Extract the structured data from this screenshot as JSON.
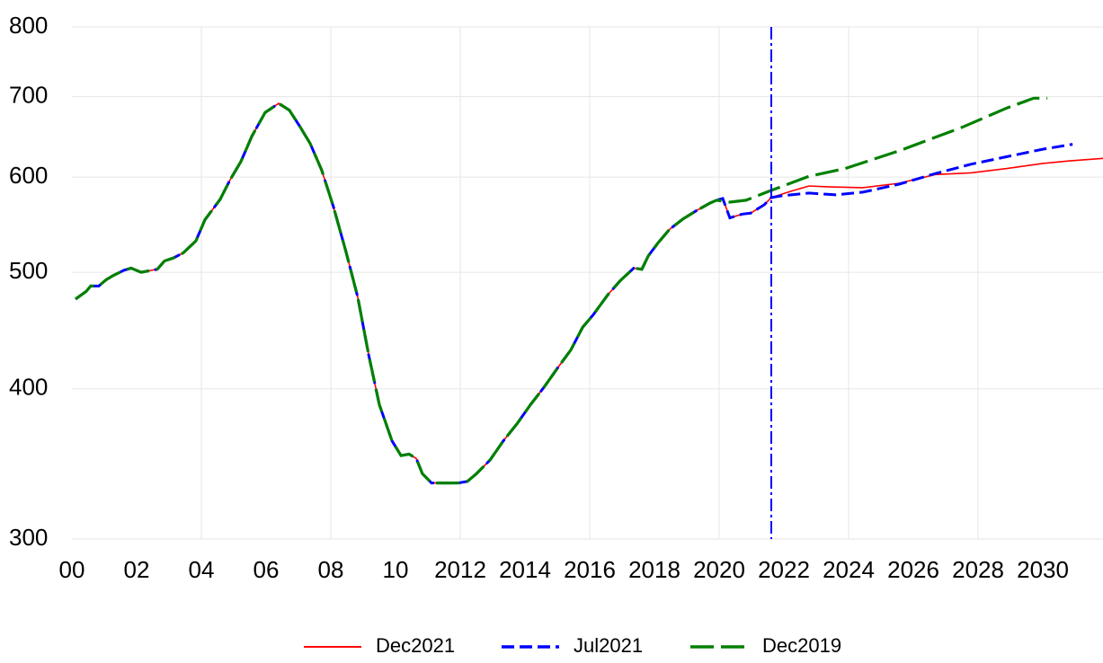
{
  "chart_data": {
    "type": "line",
    "log_y": true,
    "xlim": [
      2000,
      2031.86
    ],
    "ylim": [
      300,
      800
    ],
    "xticks": [
      {
        "value": 2000,
        "label": "00"
      },
      {
        "value": 2002,
        "label": "02"
      },
      {
        "value": 2004,
        "label": "04"
      },
      {
        "value": 2006,
        "label": "06"
      },
      {
        "value": 2008,
        "label": "08"
      },
      {
        "value": 2010,
        "label": "10"
      },
      2012,
      2014,
      2016,
      2018,
      2020,
      2022,
      2024,
      2026,
      2028,
      2030
    ],
    "xgrid": [
      2004,
      2008,
      2012,
      2016,
      2020,
      2024,
      2028
    ],
    "yticks": [
      300,
      400,
      500,
      600,
      700,
      800
    ],
    "grid": true,
    "vline": {
      "x": 2021.61,
      "color": "#0000ff"
    },
    "legend": "bottom",
    "series": [
      {
        "name": "Dec2021",
        "color": "#ff0000",
        "style": "solid",
        "x": [
          2000.11,
          2000.44,
          2000.58,
          2000.83,
          2001.06,
          2001.28,
          2001.61,
          2001.83,
          2002.14,
          2002.64,
          2002.86,
          2003.14,
          2003.44,
          2003.83,
          2004.11,
          2004.58,
          2004.89,
          2005.22,
          2005.56,
          2005.97,
          2006.39,
          2006.72,
          2007.03,
          2007.36,
          2007.72,
          2008.08,
          2008.47,
          2008.83,
          2009.17,
          2009.5,
          2009.89,
          2010.17,
          2010.42,
          2010.64,
          2010.83,
          2011.11,
          2011.53,
          2011.94,
          2012.22,
          2012.5,
          2012.92,
          2013.33,
          2013.75,
          2014.17,
          2014.58,
          2015,
          2015.42,
          2015.78,
          2016.11,
          2016.56,
          2016.94,
          2017.36,
          2017.61,
          2017.81,
          2018.11,
          2018.47,
          2018.89,
          2019.31,
          2019.72,
          2019.92,
          2020.11,
          2020.33,
          2020.72,
          2020.97,
          2021.39,
          2021.61,
          2022.22,
          2022.78,
          2023.33,
          2024.44,
          2025.56,
          2026.67,
          2027.78,
          2028.89,
          2030,
          2030.83,
          2031.86
        ],
        "values": [
          475,
          482,
          487,
          487,
          493,
          497,
          502,
          504,
          500,
          503,
          511,
          514,
          519,
          531,
          553,
          575,
          597,
          618,
          649,
          679,
          691,
          682,
          662,
          640,
          608,
          567,
          520,
          477,
          427,
          388,
          362,
          352,
          353,
          350,
          340,
          334,
          334,
          334,
          335,
          340,
          349,
          362,
          374,
          388,
          401,
          416,
          431,
          450,
          461,
          479,
          492,
          504,
          503,
          516,
          529,
          543,
          554,
          563,
          571,
          574,
          576,
          555,
          559,
          560,
          569,
          577,
          584,
          590,
          589,
          588,
          593,
          603,
          605,
          610,
          616,
          619,
          622
        ]
      },
      {
        "name": "Jul2021",
        "color": "#0000ff",
        "style": "dashed",
        "x": [
          2000.11,
          2000.44,
          2000.58,
          2000.83,
          2001.06,
          2001.28,
          2001.61,
          2001.83,
          2002.14,
          2002.64,
          2002.86,
          2003.14,
          2003.44,
          2003.83,
          2004.11,
          2004.58,
          2004.89,
          2005.22,
          2005.56,
          2005.97,
          2006.39,
          2006.72,
          2007.03,
          2007.36,
          2007.72,
          2008.08,
          2008.47,
          2008.83,
          2009.17,
          2009.5,
          2009.89,
          2010.17,
          2010.42,
          2010.64,
          2010.83,
          2011.11,
          2011.53,
          2011.94,
          2012.22,
          2012.5,
          2012.92,
          2013.33,
          2013.75,
          2014.17,
          2014.58,
          2015,
          2015.42,
          2015.78,
          2016.11,
          2016.56,
          2016.94,
          2017.36,
          2017.61,
          2017.81,
          2018.11,
          2018.47,
          2018.89,
          2019.31,
          2019.72,
          2019.92,
          2020.11,
          2020.33,
          2020.72,
          2020.97,
          2021.39,
          2021.61,
          2021.94,
          2022.78,
          2023.61,
          2024.44,
          2025.56,
          2026.67,
          2027.78,
          2028.89,
          2030,
          2030.92
        ],
        "values": [
          475,
          482,
          487,
          487,
          493,
          497,
          502,
          504,
          500,
          503,
          511,
          514,
          519,
          531,
          553,
          575,
          597,
          618,
          649,
          679,
          691,
          682,
          662,
          640,
          608,
          567,
          520,
          477,
          427,
          388,
          362,
          352,
          353,
          350,
          340,
          334,
          334,
          334,
          335,
          340,
          349,
          362,
          374,
          388,
          401,
          416,
          431,
          450,
          461,
          479,
          492,
          504,
          503,
          516,
          529,
          543,
          554,
          563,
          571,
          574,
          576,
          555,
          559,
          560,
          569,
          577,
          579,
          582,
          580,
          583,
          592,
          604,
          615,
          624,
          633,
          639
        ]
      },
      {
        "name": "Dec2019",
        "color": "#008000",
        "style": "longdash",
        "x": [
          2000.11,
          2000.44,
          2000.58,
          2000.83,
          2001.06,
          2001.28,
          2001.61,
          2001.83,
          2002.14,
          2002.64,
          2002.86,
          2003.14,
          2003.44,
          2003.83,
          2004.11,
          2004.58,
          2004.89,
          2005.22,
          2005.56,
          2005.97,
          2006.39,
          2006.72,
          2007.03,
          2007.36,
          2007.72,
          2008.08,
          2008.47,
          2008.83,
          2009.17,
          2009.5,
          2009.89,
          2010.17,
          2010.42,
          2010.64,
          2010.83,
          2011.11,
          2011.53,
          2011.94,
          2012.22,
          2012.5,
          2012.92,
          2013.33,
          2013.75,
          2014.17,
          2014.58,
          2015,
          2015.42,
          2015.78,
          2016.11,
          2016.56,
          2016.94,
          2017.36,
          2017.61,
          2017.81,
          2018.11,
          2018.47,
          2018.89,
          2019.31,
          2019.72,
          2019.92,
          2020.33,
          2020.83,
          2021.61,
          2022.78,
          2023.89,
          2025.56,
          2027.5,
          2028.89,
          2029.72,
          2030.14
        ],
        "values": [
          475,
          482,
          487,
          487,
          493,
          497,
          502,
          504,
          500,
          503,
          511,
          514,
          519,
          531,
          553,
          575,
          597,
          618,
          649,
          679,
          691,
          682,
          662,
          640,
          608,
          567,
          520,
          477,
          427,
          388,
          362,
          352,
          353,
          350,
          340,
          334,
          334,
          334,
          335,
          340,
          349,
          362,
          374,
          388,
          401,
          416,
          431,
          450,
          461,
          479,
          492,
          504,
          503,
          516,
          529,
          543,
          554,
          563,
          571,
          574,
          572,
          574,
          585,
          601,
          610,
          631,
          660,
          685,
          698,
          698
        ]
      }
    ]
  }
}
